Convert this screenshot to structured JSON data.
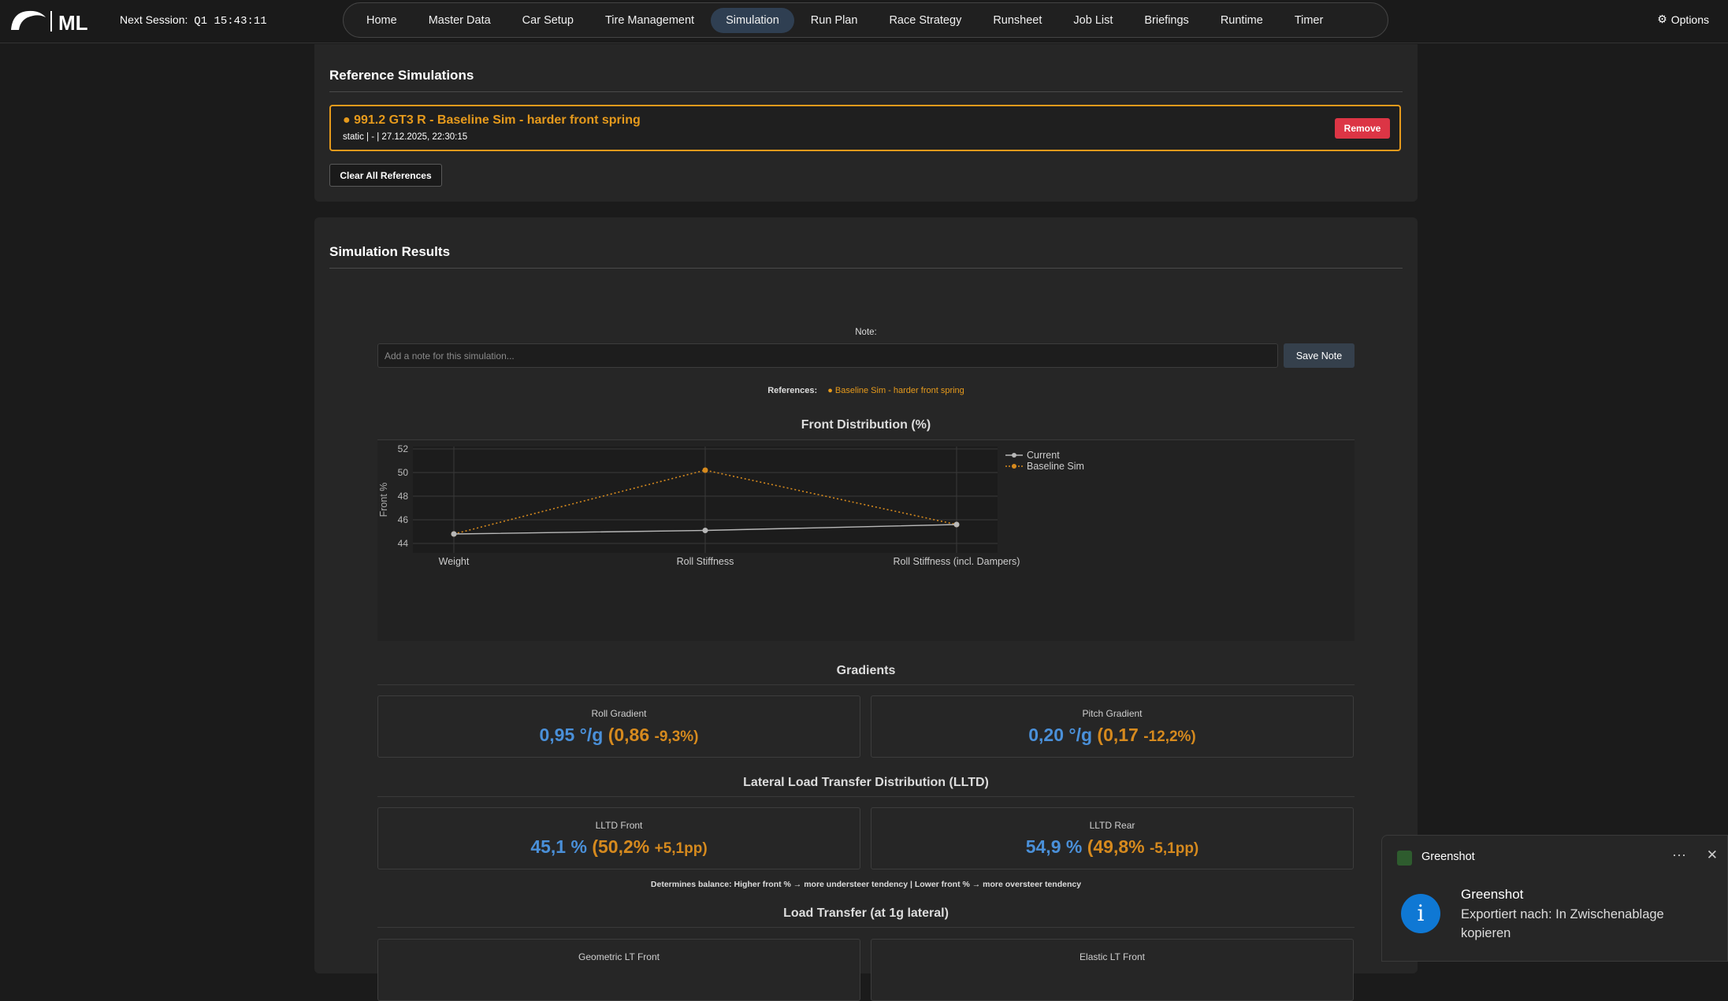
{
  "header": {
    "session_label": "Next Session:",
    "session_value": "Q1 15:43:11",
    "nav": [
      "Home",
      "Master Data",
      "Car Setup",
      "Tire Management",
      "Simulation",
      "Run Plan",
      "Race Strategy",
      "Runsheet",
      "Job List",
      "Briefings",
      "Runtime",
      "Timer"
    ],
    "active_nav": "Simulation",
    "options_label": "Options"
  },
  "reference_panel": {
    "title": "Reference Simulations",
    "item_name": "● 991.2 GT3 R - Baseline Sim - harder front spring",
    "item_meta": "static | - | 27.12.2025, 22:30:15",
    "remove_label": "Remove",
    "clear_label": "Clear All References"
  },
  "results": {
    "title": "Simulation Results",
    "note_label": "Note:",
    "note_placeholder": "Add a note for this simulation...",
    "save_label": "Save Note",
    "references_label": "References:",
    "references_value": "● Baseline Sim - harder front spring",
    "front_distribution_title": "Front Distribution (%)",
    "gradients_title": "Gradients",
    "roll_gradient": {
      "label": "Roll Gradient",
      "current": "0,95 °/g",
      "ref": "(0,86",
      "delta": "-9,3%)"
    },
    "pitch_gradient": {
      "label": "Pitch Gradient",
      "current": "0,20 °/g",
      "ref": "(0,17",
      "delta": "-12,2%)"
    },
    "lltd_title": "Lateral Load Transfer Distribution (LLTD)",
    "lltd_front": {
      "label": "LLTD Front",
      "current": "45,1 %",
      "ref": "(50,2%",
      "delta": "+5,1pp)"
    },
    "lltd_rear": {
      "label": "LLTD Rear",
      "current": "54,9 %",
      "ref": "(49,8%",
      "delta": "-5,1pp)"
    },
    "lltd_hint": "Determines balance: Higher front % → more understeer tendency | Lower front % → more oversteer tendency",
    "load_transfer_title": "Load Transfer (at 1g lateral)",
    "geometric_lt_front": "Geometric LT Front",
    "elastic_lt_front": "Elastic LT Front"
  },
  "chart_data": {
    "type": "line",
    "categories": [
      "Weight",
      "Roll Stiffness",
      "Roll Stiffness (incl. Dampers)"
    ],
    "series": [
      {
        "name": "Current",
        "values": [
          44.8,
          45.1,
          45.6
        ],
        "color": "#b8b8b8",
        "dash": false
      },
      {
        "name": "Baseline Sim",
        "values": [
          44.8,
          50.2,
          45.6
        ],
        "color": "#d68a1e",
        "dash": true
      }
    ],
    "ylabel": "Front %",
    "yticks": [
      44,
      46,
      48,
      50,
      52
    ],
    "ylim": [
      43.2,
      52.2
    ],
    "grid": true,
    "legend": "top-right"
  },
  "toast": {
    "app": "Greenshot",
    "title": "Greenshot",
    "body": "Exportiert nach: In Zwischenablage kopieren"
  },
  "colors": {
    "accent_orange": "#e69a1c",
    "accent_blue": "#4a90d9",
    "danger": "#dc3545"
  }
}
